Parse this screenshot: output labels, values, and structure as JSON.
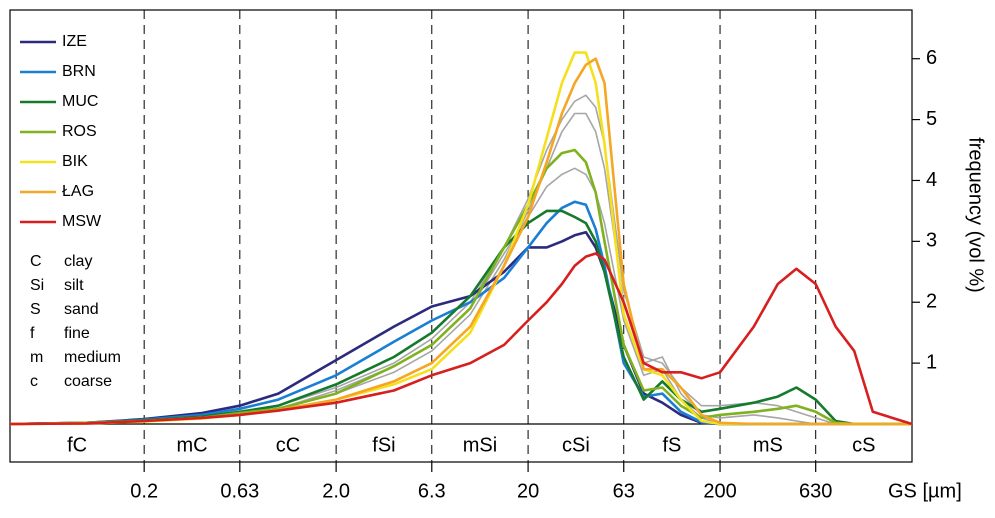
{
  "chart_data": {
    "type": "line",
    "xlabel": "GS [µm]",
    "ylabel": "frequency (vol %)",
    "log_x": true,
    "xlim": [
      0.04,
      2000
    ],
    "ylim": [
      0,
      6.8
    ],
    "xticks": [
      0.2,
      0.63,
      {
        "value": 2,
        "label": "2.0"
      },
      6.3,
      20,
      63,
      200,
      630
    ],
    "yticks": [
      1,
      2,
      3,
      4,
      5,
      6
    ],
    "classes": [
      "fC",
      "mC",
      "cC",
      "fSi",
      "mSi",
      "cSi",
      "fS",
      "mS",
      "cS"
    ],
    "abbreviations": [
      [
        "C",
        "clay"
      ],
      [
        "Si",
        "silt"
      ],
      [
        "S",
        "sand"
      ],
      [
        "f",
        "fine"
      ],
      [
        "m",
        "medium"
      ],
      [
        "c",
        "coarse"
      ]
    ],
    "x": [
      0.04,
      0.1,
      0.2,
      0.4,
      0.63,
      1,
      2,
      4,
      6.3,
      10,
      15,
      20,
      25,
      30,
      35,
      40,
      45,
      50,
      63,
      80,
      100,
      125,
      160,
      200,
      300,
      400,
      500,
      630,
      800,
      1000,
      1250,
      2000
    ],
    "series": [
      {
        "color": "#a6a6a6",
        "values": [
          0,
          0.02,
          0.06,
          0.12,
          0.2,
          0.3,
          0.6,
          1.0,
          1.4,
          2.0,
          2.9,
          3.7,
          4.5,
          5.0,
          5.3,
          5.4,
          5.2,
          4.6,
          2.2,
          1.1,
          1.0,
          0.6,
          0.3,
          0.3,
          0.35,
          0.3,
          0.2,
          0.1,
          0,
          0,
          0,
          0
        ]
      },
      {
        "color": "#a6a6a6",
        "values": [
          0,
          0.02,
          0.05,
          0.1,
          0.17,
          0.26,
          0.5,
          0.85,
          1.2,
          1.8,
          2.7,
          3.5,
          4.2,
          4.8,
          5.1,
          5.1,
          4.8,
          4.2,
          2.0,
          1.0,
          1.1,
          0.5,
          0.15,
          0.1,
          0.15,
          0.1,
          0.05,
          0,
          0,
          0,
          0,
          0
        ]
      },
      {
        "color": "#a6a6a6",
        "values": [
          0,
          0.02,
          0.05,
          0.1,
          0.17,
          0.25,
          0.55,
          0.95,
          1.3,
          1.9,
          2.8,
          3.4,
          3.9,
          4.1,
          4.2,
          4.1,
          3.8,
          3.3,
          1.7,
          0.8,
          0.9,
          0.4,
          0.1,
          0,
          0,
          0,
          0,
          0,
          0,
          0,
          0,
          0
        ]
      },
      {
        "name": "IZE",
        "color": "#2b2a7f",
        "values": [
          0,
          0.02,
          0.08,
          0.18,
          0.3,
          0.5,
          1.05,
          1.6,
          1.93,
          2.1,
          2.5,
          2.9,
          2.9,
          3.0,
          3.1,
          3.15,
          2.9,
          2.5,
          1.3,
          0.5,
          0.35,
          0.15,
          0.02,
          0,
          0,
          0,
          0,
          0,
          0,
          0,
          0,
          0
        ]
      },
      {
        "name": "BRN",
        "color": "#1a7fd4",
        "values": [
          0,
          0.02,
          0.07,
          0.15,
          0.25,
          0.4,
          0.8,
          1.35,
          1.7,
          2.0,
          2.4,
          2.9,
          3.3,
          3.55,
          3.65,
          3.6,
          3.2,
          2.6,
          1.0,
          0.45,
          0.5,
          0.2,
          0.03,
          0,
          0,
          0,
          0,
          0,
          0,
          0,
          0,
          0
        ]
      },
      {
        "name": "MUC",
        "color": "#157a2c",
        "values": [
          0,
          0.02,
          0.06,
          0.12,
          0.2,
          0.3,
          0.65,
          1.1,
          1.5,
          2.1,
          2.9,
          3.3,
          3.5,
          3.5,
          3.4,
          3.3,
          3.0,
          2.5,
          1.1,
          0.4,
          0.7,
          0.4,
          0.2,
          0.25,
          0.35,
          0.45,
          0.6,
          0.4,
          0.05,
          0,
          0,
          0
        ]
      },
      {
        "name": "ROS",
        "color": "#7fb21e",
        "values": [
          0,
          0.02,
          0.05,
          0.1,
          0.18,
          0.25,
          0.5,
          0.95,
          1.3,
          1.9,
          2.9,
          3.6,
          4.2,
          4.45,
          4.5,
          4.3,
          3.8,
          3.0,
          1.3,
          0.55,
          0.6,
          0.3,
          0.1,
          0.15,
          0.2,
          0.25,
          0.3,
          0.2,
          0.02,
          0,
          0,
          0
        ]
      },
      {
        "name": "BIK",
        "color": "#f5e01c",
        "values": [
          0,
          0.01,
          0.04,
          0.09,
          0.15,
          0.22,
          0.4,
          0.65,
          0.9,
          1.5,
          2.6,
          3.6,
          4.7,
          5.6,
          6.1,
          6.1,
          5.6,
          4.6,
          1.8,
          0.9,
          0.8,
          0.4,
          0.05,
          0,
          0,
          0,
          0,
          0,
          0,
          0,
          0,
          0
        ]
      },
      {
        "name": "ŁAG",
        "color": "#f5a623",
        "values": [
          0,
          0.01,
          0.05,
          0.1,
          0.15,
          0.23,
          0.4,
          0.7,
          1.0,
          1.6,
          2.6,
          3.4,
          4.3,
          5.1,
          5.6,
          5.9,
          6.0,
          5.6,
          2.3,
          0.9,
          0.9,
          0.6,
          0.15,
          0.02,
          0,
          0,
          0,
          0,
          0,
          0,
          0,
          0
        ]
      },
      {
        "name": "MSW",
        "color": "#d71f1f",
        "values": [
          0,
          0.01,
          0.05,
          0.1,
          0.15,
          0.22,
          0.35,
          0.55,
          0.8,
          1.0,
          1.3,
          1.7,
          2.0,
          2.3,
          2.6,
          2.75,
          2.8,
          2.7,
          2.0,
          1.0,
          0.85,
          0.85,
          0.75,
          0.85,
          1.6,
          2.3,
          2.55,
          2.3,
          1.6,
          1.2,
          0.2,
          0
        ]
      }
    ]
  }
}
